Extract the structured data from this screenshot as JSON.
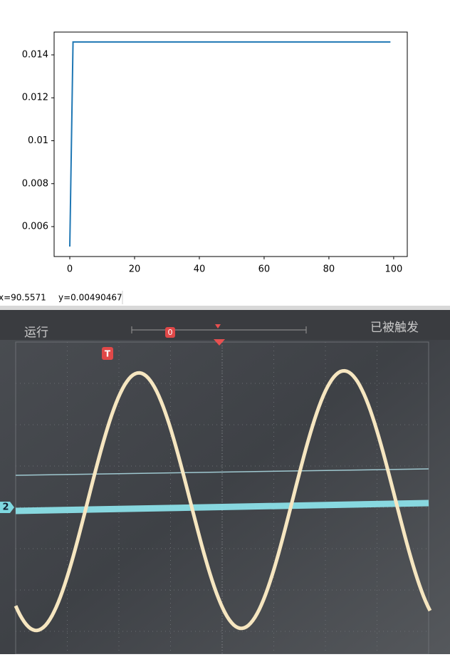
{
  "chart_data": {
    "type": "line",
    "x": [
      0,
      1,
      99
    ],
    "series": [
      {
        "color": "#1f77b4",
        "values": [
          0.00507,
          0.0146,
          0.0146
        ]
      }
    ],
    "xlim": [
      -4.84,
      104.2
    ],
    "xticks": [
      0,
      20,
      40,
      60,
      80,
      100
    ],
    "ylim": [
      0.004606,
      0.015062
    ],
    "yticks": [
      0.006,
      0.008,
      0.01,
      0.012,
      0.014
    ]
  },
  "status_bar": {
    "x_readout": "x=90.5571",
    "y_readout": "y=0.00490467"
  },
  "scope": {
    "run_state": "运行",
    "trigger_state": "已被触发",
    "trigger_marker": "T",
    "channel_marker": "2",
    "position_marker": "0"
  }
}
